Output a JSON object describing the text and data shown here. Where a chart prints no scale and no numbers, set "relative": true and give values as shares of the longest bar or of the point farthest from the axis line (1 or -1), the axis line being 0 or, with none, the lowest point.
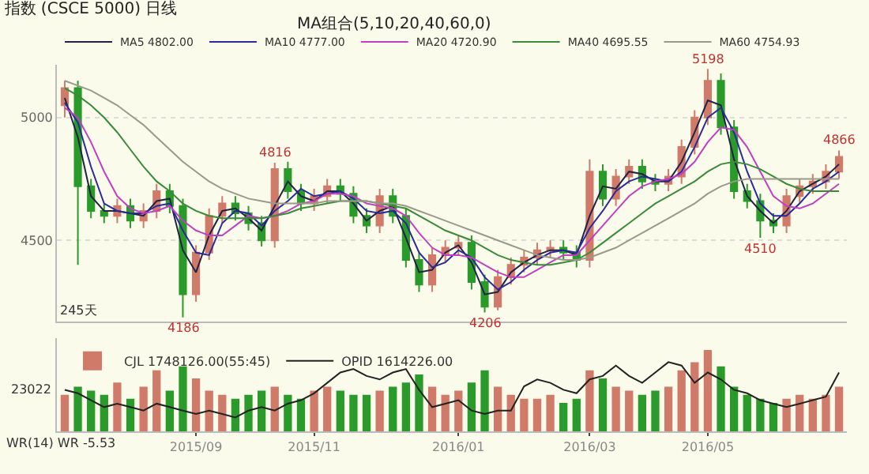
{
  "chart_data": [
    {
      "type": "candlestick",
      "title": "指数 (CSCE 5000) 日线",
      "annotations": [
        "MA组合(5,10,20,40,60,0)",
        "245天",
        {
          "text": "5198",
          "y": 5198
        },
        {
          "text": "4816",
          "y": 4816
        },
        {
          "text": "4186",
          "y": 4186
        },
        {
          "text": "4206",
          "y": 4206
        },
        {
          "text": "4510",
          "y": 4510
        },
        {
          "text": "4866",
          "y": 4866
        }
      ],
      "categories": [
        null,
        null,
        null,
        null,
        null,
        null,
        null,
        null,
        null,
        null,
        "2015/09",
        null,
        null,
        null,
        null,
        null,
        null,
        null,
        null,
        "2015/11",
        null,
        null,
        null,
        null,
        null,
        null,
        null,
        null,
        null,
        null,
        "2016/01",
        null,
        null,
        null,
        null,
        null,
        null,
        null,
        null,
        null,
        "2016/03",
        null,
        null,
        null,
        null,
        null,
        null,
        null,
        null,
        "2016/05",
        null,
        null,
        null,
        null,
        null,
        null,
        null,
        null,
        null,
        null
      ],
      "ohlc": [
        [
          5050,
          5150,
          5000,
          5120
        ],
        [
          5120,
          5150,
          4400,
          4720
        ],
        [
          4720,
          4750,
          4590,
          4620
        ],
        [
          4620,
          4650,
          4570,
          4600
        ],
        [
          4600,
          4670,
          4570,
          4640
        ],
        [
          4640,
          4670,
          4550,
          4580
        ],
        [
          4580,
          4650,
          4550,
          4620
        ],
        [
          4620,
          4730,
          4590,
          4700
        ],
        [
          4700,
          4730,
          4610,
          4640
        ],
        [
          4640,
          4670,
          4186,
          4280
        ],
        [
          4280,
          4480,
          4250,
          4450
        ],
        [
          4450,
          4630,
          4420,
          4600
        ],
        [
          4600,
          4680,
          4570,
          4650
        ],
        [
          4650,
          4680,
          4580,
          4610
        ],
        [
          4610,
          4640,
          4540,
          4570
        ],
        [
          4570,
          4600,
          4475,
          4500
        ],
        [
          4500,
          4816,
          4470,
          4790
        ],
        [
          4790,
          4820,
          4670,
          4700
        ],
        [
          4700,
          4730,
          4620,
          4650
        ],
        [
          4650,
          4710,
          4620,
          4680
        ],
        [
          4680,
          4750,
          4650,
          4720
        ],
        [
          4720,
          4750,
          4660,
          4690
        ],
        [
          4690,
          4720,
          4570,
          4600
        ],
        [
          4600,
          4630,
          4530,
          4560
        ],
        [
          4560,
          4710,
          4530,
          4680
        ],
        [
          4680,
          4710,
          4570,
          4600
        ],
        [
          4600,
          4630,
          4390,
          4420
        ],
        [
          4420,
          4450,
          4290,
          4320
        ],
        [
          4320,
          4470,
          4290,
          4440
        ],
        [
          4440,
          4500,
          4410,
          4470
        ],
        [
          4470,
          4520,
          4440,
          4490
        ],
        [
          4490,
          4520,
          4300,
          4330
        ],
        [
          4330,
          4360,
          4206,
          4230
        ],
        [
          4230,
          4380,
          4215,
          4350
        ],
        [
          4350,
          4430,
          4320,
          4400
        ],
        [
          4400,
          4460,
          4370,
          4430
        ],
        [
          4430,
          4490,
          4400,
          4460
        ],
        [
          4460,
          4500,
          4430,
          4470
        ],
        [
          4470,
          4500,
          4420,
          4450
        ],
        [
          4450,
          4480,
          4390,
          4420
        ],
        [
          4420,
          4830,
          4390,
          4780
        ],
        [
          4780,
          4810,
          4640,
          4670
        ],
        [
          4670,
          4790,
          4640,
          4760
        ],
        [
          4760,
          4830,
          4730,
          4800
        ],
        [
          4800,
          4830,
          4710,
          4740
        ],
        [
          4740,
          4770,
          4700,
          4730
        ],
        [
          4730,
          4790,
          4700,
          4760
        ],
        [
          4760,
          4910,
          4730,
          4880
        ],
        [
          4880,
          5030,
          4850,
          5000
        ],
        [
          5000,
          5198,
          4970,
          5150
        ],
        [
          5150,
          5180,
          4930,
          4960
        ],
        [
          4960,
          4990,
          4670,
          4700
        ],
        [
          4700,
          4730,
          4630,
          4660
        ],
        [
          4660,
          4690,
          4510,
          4580
        ],
        [
          4580,
          4610,
          4530,
          4560
        ],
        [
          4560,
          4710,
          4530,
          4680
        ],
        [
          4680,
          4750,
          4650,
          4720
        ],
        [
          4720,
          4770,
          4690,
          4740
        ],
        [
          4740,
          4810,
          4710,
          4780
        ],
        [
          4780,
          4866,
          4750,
          4840
        ]
      ],
      "colors": [
        "#d07a6a",
        "#2a9a2a",
        "#2a9a2a",
        "#2a9a2a",
        "#d07a6a",
        "#2a9a2a",
        "#d07a6a",
        "#d07a6a",
        "#2a9a2a",
        "#2a9a2a",
        "#d07a6a",
        "#d07a6a",
        "#d07a6a",
        "#2a9a2a",
        "#2a9a2a",
        "#2a9a2a",
        "#d07a6a",
        "#2a9a2a",
        "#2a9a2a",
        "#d07a6a",
        "#d07a6a",
        "#2a9a2a",
        "#2a9a2a",
        "#2a9a2a",
        "#d07a6a",
        "#2a9a2a",
        "#2a9a2a",
        "#2a9a2a",
        "#d07a6a",
        "#d07a6a",
        "#d07a6a",
        "#2a9a2a",
        "#2a9a2a",
        "#d07a6a",
        "#d07a6a",
        "#d07a6a",
        "#d07a6a",
        "#d07a6a",
        "#2a9a2a",
        "#2a9a2a",
        "#d07a6a",
        "#2a9a2a",
        "#d07a6a",
        "#d07a6a",
        "#2a9a2a",
        "#2a9a2a",
        "#d07a6a",
        "#d07a6a",
        "#d07a6a",
        "#d07a6a",
        "#2a9a2a",
        "#2a9a2a",
        "#2a9a2a",
        "#2a9a2a",
        "#2a9a2a",
        "#d07a6a",
        "#d07a6a",
        "#d07a6a",
        "#d07a6a",
        "#d07a6a"
      ],
      "series": [
        {
          "type": "line",
          "name": "MA5 4802.00",
          "color": "#222244",
          "values": [
            5080,
            4920,
            4680,
            4620,
            4620,
            4610,
            4600,
            4660,
            4670,
            4460,
            4370,
            4520,
            4620,
            4630,
            4590,
            4540,
            4640,
            4740,
            4680,
            4660,
            4700,
            4700,
            4650,
            4580,
            4620,
            4640,
            4510,
            4370,
            4380,
            4450,
            4480,
            4410,
            4280,
            4290,
            4370,
            4410,
            4440,
            4460,
            4460,
            4440,
            4600,
            4720,
            4710,
            4780,
            4770,
            4740,
            4740,
            4820,
            4940,
            5070,
            5050,
            4830,
            4680,
            4620,
            4570,
            4620,
            4700,
            4730,
            4760,
            4810
          ]
        },
        {
          "type": "line",
          "name": "MA10 4777.00",
          "color": "#2a2a9a",
          "values": [
            5060,
            4980,
            4800,
            4650,
            4620,
            4610,
            4610,
            4640,
            4650,
            4540,
            4450,
            4440,
            4570,
            4620,
            4610,
            4560,
            4620,
            4660,
            4710,
            4680,
            4690,
            4700,
            4670,
            4620,
            4610,
            4620,
            4570,
            4450,
            4390,
            4410,
            4460,
            4430,
            4350,
            4300,
            4330,
            4380,
            4420,
            4450,
            4460,
            4450,
            4550,
            4620,
            4700,
            4740,
            4760,
            4750,
            4740,
            4780,
            4880,
            5000,
            5040,
            4940,
            4780,
            4650,
            4600,
            4600,
            4650,
            4710,
            4740,
            4780
          ]
        },
        {
          "type": "line",
          "name": "MA20 4720.90",
          "color": "#c040c0",
          "values": [
            5040,
            5000,
            4900,
            4780,
            4680,
            4630,
            4610,
            4620,
            4640,
            4580,
            4540,
            4520,
            4520,
            4560,
            4600,
            4590,
            4600,
            4620,
            4650,
            4660,
            4690,
            4690,
            4680,
            4650,
            4640,
            4630,
            4600,
            4530,
            4470,
            4440,
            4440,
            4430,
            4400,
            4370,
            4350,
            4350,
            4380,
            4410,
            4440,
            4440,
            4500,
            4560,
            4620,
            4680,
            4720,
            4740,
            4750,
            4770,
            4820,
            4900,
            4960,
            4950,
            4880,
            4780,
            4680,
            4640,
            4630,
            4650,
            4690,
            4730
          ]
        },
        {
          "type": "line",
          "name": "MA40 4695.55",
          "color": "#3a8a3a",
          "values": [
            5120,
            5090,
            5050,
            5000,
            4940,
            4870,
            4800,
            4740,
            4700,
            4650,
            4620,
            4600,
            4590,
            4590,
            4590,
            4590,
            4600,
            4610,
            4630,
            4640,
            4650,
            4660,
            4660,
            4660,
            4650,
            4640,
            4630,
            4600,
            4570,
            4540,
            4520,
            4500,
            4470,
            4440,
            4420,
            4410,
            4400,
            4400,
            4410,
            4420,
            4450,
            4490,
            4530,
            4570,
            4610,
            4650,
            4680,
            4710,
            4740,
            4780,
            4810,
            4820,
            4810,
            4790,
            4760,
            4730,
            4710,
            4700,
            4700,
            4700
          ]
        },
        {
          "type": "line",
          "name": "MA60 4754.93",
          "color": "#9a9a8a",
          "values": [
            5150,
            5130,
            5110,
            5080,
            5050,
            5010,
            4970,
            4920,
            4870,
            4820,
            4780,
            4740,
            4710,
            4690,
            4670,
            4660,
            4650,
            4650,
            4650,
            4650,
            4660,
            4660,
            4660,
            4660,
            4650,
            4650,
            4640,
            4620,
            4600,
            4580,
            4560,
            4540,
            4520,
            4500,
            4480,
            4460,
            4440,
            4430,
            4420,
            4420,
            4430,
            4450,
            4470,
            4500,
            4530,
            4560,
            4590,
            4620,
            4650,
            4690,
            4720,
            4740,
            4750,
            4750,
            4750,
            4750,
            4750,
            4750,
            4750,
            4750
          ]
        }
      ],
      "ylim": [
        4170,
        5215
      ],
      "yticks": [
        4500,
        5000
      ],
      "grid": "y",
      "legend": "top",
      "tick_labels": "y"
    },
    {
      "type": "bar",
      "relative": true,
      "legend": "top left",
      "tick_labels": "x",
      "annotations": [
        "23022",
        "WR(14) WR -5.53"
      ],
      "categories": [
        null,
        null,
        null,
        null,
        null,
        null,
        null,
        null,
        null,
        null,
        "2015/09",
        null,
        null,
        null,
        null,
        null,
        null,
        null,
        null,
        "2015/11",
        null,
        null,
        null,
        null,
        null,
        null,
        null,
        null,
        null,
        null,
        "2016/01",
        null,
        null,
        null,
        null,
        null,
        null,
        null,
        null,
        null,
        "2016/03",
        null,
        null,
        null,
        null,
        null,
        null,
        null,
        null,
        "2016/05",
        null,
        null,
        null,
        null,
        null,
        null,
        null,
        null,
        null,
        null
      ],
      "series": [
        {
          "type": "bar",
          "name": "CJL 1748126.00(55:45)",
          "values": [
            0.45,
            0.55,
            0.5,
            0.45,
            0.6,
            0.4,
            0.55,
            0.75,
            0.5,
            0.8,
            0.65,
            0.5,
            0.45,
            0.4,
            0.45,
            0.5,
            0.55,
            0.45,
            0.4,
            0.5,
            0.55,
            0.5,
            0.45,
            0.45,
            0.5,
            0.55,
            0.6,
            0.7,
            0.55,
            0.45,
            0.5,
            0.6,
            0.75,
            0.55,
            0.45,
            0.4,
            0.4,
            0.45,
            0.35,
            0.4,
            0.75,
            0.65,
            0.55,
            0.5,
            0.45,
            0.5,
            0.55,
            0.75,
            0.85,
            1.0,
            0.8,
            0.55,
            0.45,
            0.4,
            0.35,
            0.4,
            0.45,
            0.4,
            0.45,
            0.55
          ],
          "colors": [
            "#d07a6a",
            "#2a9a2a",
            "#2a9a2a",
            "#2a9a2a",
            "#d07a6a",
            "#2a9a2a",
            "#d07a6a",
            "#d07a6a",
            "#2a9a2a",
            "#2a9a2a",
            "#d07a6a",
            "#d07a6a",
            "#d07a6a",
            "#2a9a2a",
            "#2a9a2a",
            "#2a9a2a",
            "#d07a6a",
            "#2a9a2a",
            "#2a9a2a",
            "#d07a6a",
            "#d07a6a",
            "#2a9a2a",
            "#2a9a2a",
            "#2a9a2a",
            "#d07a6a",
            "#2a9a2a",
            "#2a9a2a",
            "#2a9a2a",
            "#d07a6a",
            "#d07a6a",
            "#d07a6a",
            "#2a9a2a",
            "#2a9a2a",
            "#d07a6a",
            "#d07a6a",
            "#d07a6a",
            "#d07a6a",
            "#d07a6a",
            "#2a9a2a",
            "#2a9a2a",
            "#d07a6a",
            "#2a9a2a",
            "#d07a6a",
            "#d07a6a",
            "#2a9a2a",
            "#2a9a2a",
            "#d07a6a",
            "#d07a6a",
            "#d07a6a",
            "#d07a6a",
            "#2a9a2a",
            "#2a9a2a",
            "#2a9a2a",
            "#2a9a2a",
            "#2a9a2a",
            "#d07a6a",
            "#d07a6a",
            "#d07a6a",
            "#d07a6a",
            "#d07a6a"
          ]
        },
        {
          "type": "line",
          "axis": "y2",
          "name": "OPID 1614226.00",
          "color": "#222222",
          "values": [
            0.6,
            0.55,
            0.45,
            0.35,
            0.4,
            0.35,
            0.3,
            0.4,
            0.35,
            0.3,
            0.25,
            0.3,
            0.25,
            0.2,
            0.3,
            0.35,
            0.3,
            0.4,
            0.45,
            0.55,
            0.7,
            0.85,
            0.9,
            0.8,
            0.75,
            0.85,
            0.9,
            0.6,
            0.35,
            0.4,
            0.45,
            0.3,
            0.25,
            0.3,
            0.3,
            0.65,
            0.75,
            0.7,
            0.6,
            0.55,
            0.75,
            0.8,
            0.95,
            0.8,
            0.7,
            0.85,
            1.0,
            0.95,
            0.7,
            0.85,
            0.75,
            0.6,
            0.55,
            0.45,
            0.4,
            0.35,
            0.4,
            0.45,
            0.5,
            0.85
          ]
        }
      ]
    }
  ]
}
